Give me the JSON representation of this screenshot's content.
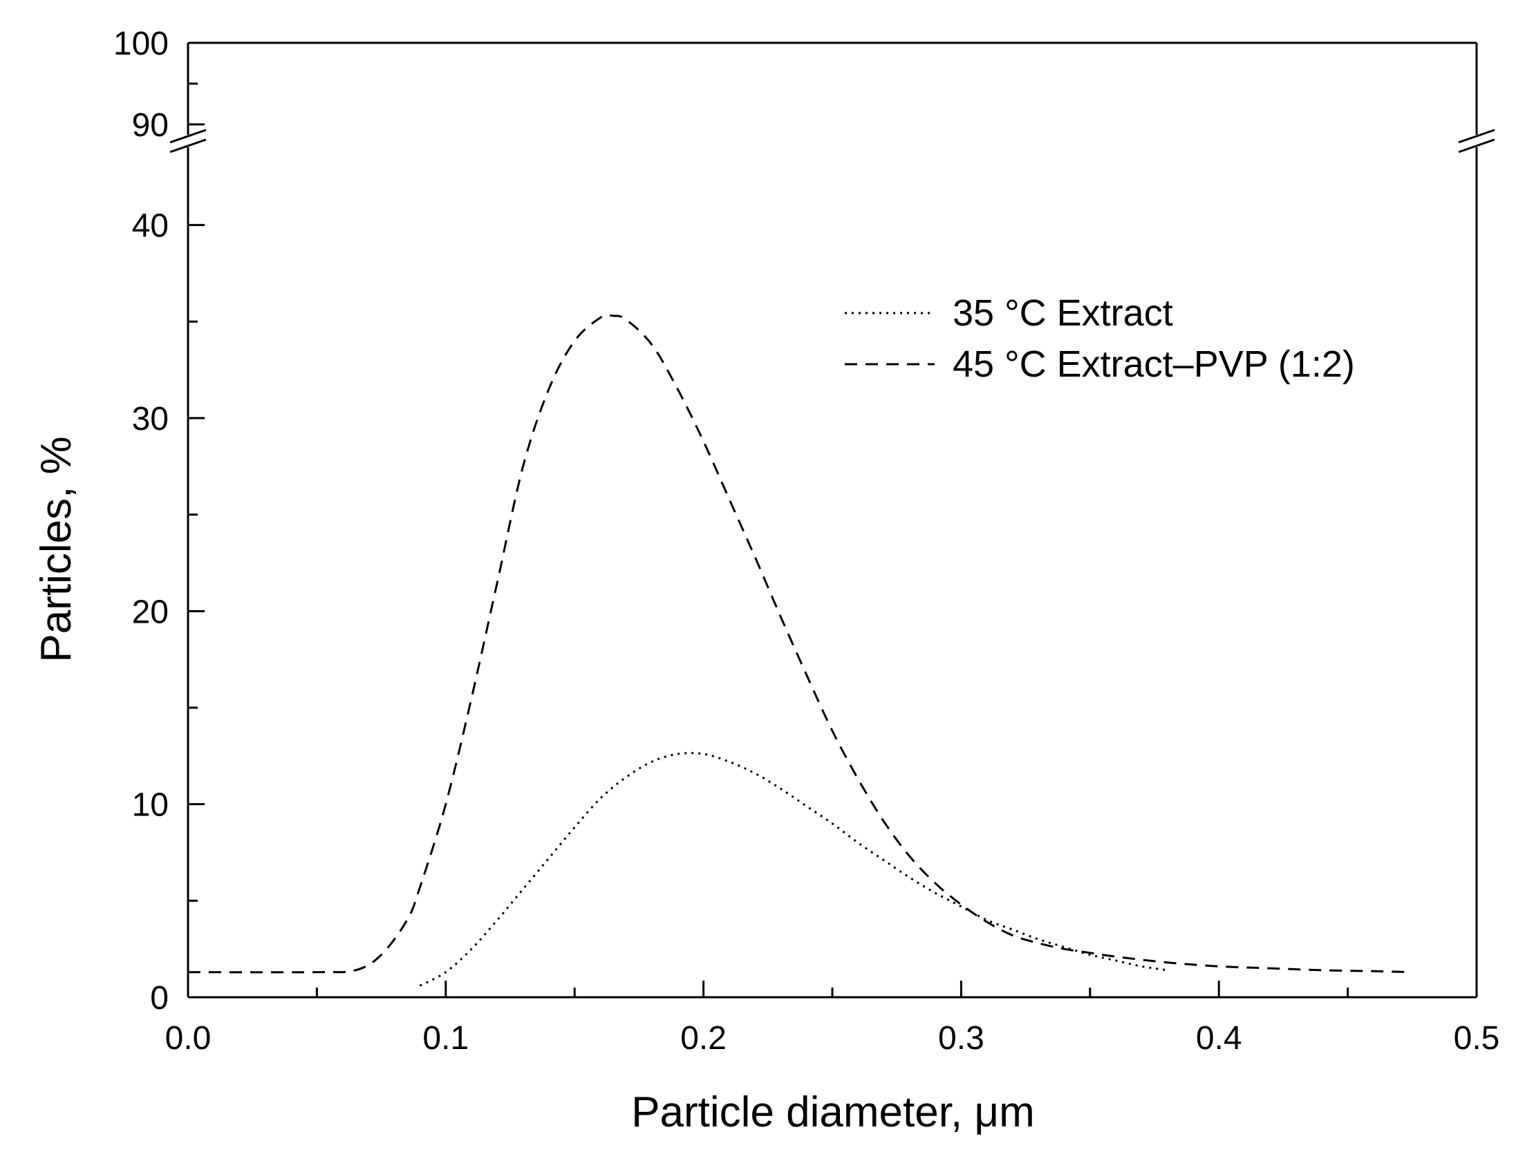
{
  "chart_data": {
    "type": "line",
    "xlabel": "Particle diameter, μm",
    "ylabel": "Particles, %",
    "xlim": [
      0.0,
      0.5
    ],
    "ylim_lower": [
      0,
      45
    ],
    "ylim_upper": [
      90,
      100
    ],
    "axis_break": {
      "lower_top": 45,
      "upper_bottom": 90
    },
    "x_ticks": [
      "0.0",
      "0.1",
      "0.2",
      "0.3",
      "0.4",
      "0.5"
    ],
    "y_ticks": [
      {
        "value": 0,
        "label": "0"
      },
      {
        "value": 10,
        "label": "10"
      },
      {
        "value": 20,
        "label": "20"
      },
      {
        "value": 30,
        "label": "30"
      },
      {
        "value": 40,
        "label": "40"
      },
      {
        "value": 90,
        "label": "90"
      },
      {
        "value": 100,
        "label": "100"
      }
    ],
    "legend_position": "top-right",
    "grid": false,
    "series": [
      {
        "name": "35 °C Extract",
        "style": "dotted",
        "color": "#000000",
        "x": [
          0.09,
          0.1,
          0.11,
          0.12,
          0.13,
          0.14,
          0.15,
          0.16,
          0.17,
          0.18,
          0.19,
          0.2,
          0.21,
          0.22,
          0.23,
          0.24,
          0.25,
          0.26,
          0.27,
          0.28,
          0.29,
          0.3,
          0.31,
          0.32,
          0.33,
          0.34,
          0.35,
          0.36,
          0.37,
          0.38
        ],
        "y": [
          0.6,
          1.3,
          2.5,
          4.0,
          5.6,
          7.2,
          8.8,
          10.3,
          11.4,
          12.2,
          12.6,
          12.6,
          12.2,
          11.6,
          10.8,
          9.9,
          9.0,
          8.0,
          7.1,
          6.2,
          5.4,
          4.7,
          4.0,
          3.5,
          3.0,
          2.6,
          2.2,
          1.9,
          1.6,
          1.4
        ]
      },
      {
        "name": "45 °C Extract–PVP (1:2)",
        "style": "dashed",
        "color": "#000000",
        "x": [
          0.0,
          0.05,
          0.065,
          0.075,
          0.085,
          0.09,
          0.1,
          0.11,
          0.12,
          0.13,
          0.14,
          0.15,
          0.16,
          0.165,
          0.17,
          0.18,
          0.19,
          0.2,
          0.21,
          0.22,
          0.23,
          0.24,
          0.25,
          0.26,
          0.27,
          0.28,
          0.29,
          0.3,
          0.31,
          0.32,
          0.33,
          0.34,
          0.35,
          0.36,
          0.38,
          0.4,
          0.42,
          0.44,
          0.46,
          0.475
        ],
        "y": [
          1.3,
          1.3,
          1.4,
          2.2,
          4.0,
          5.7,
          10.0,
          15.5,
          21.5,
          27.5,
          31.5,
          34.0,
          35.2,
          35.3,
          35.1,
          33.8,
          31.5,
          28.8,
          25.8,
          22.8,
          19.7,
          16.7,
          13.8,
          11.3,
          9.1,
          7.3,
          5.9,
          4.8,
          3.9,
          3.2,
          2.8,
          2.5,
          2.3,
          2.1,
          1.8,
          1.6,
          1.5,
          1.4,
          1.35,
          1.3
        ]
      }
    ]
  }
}
